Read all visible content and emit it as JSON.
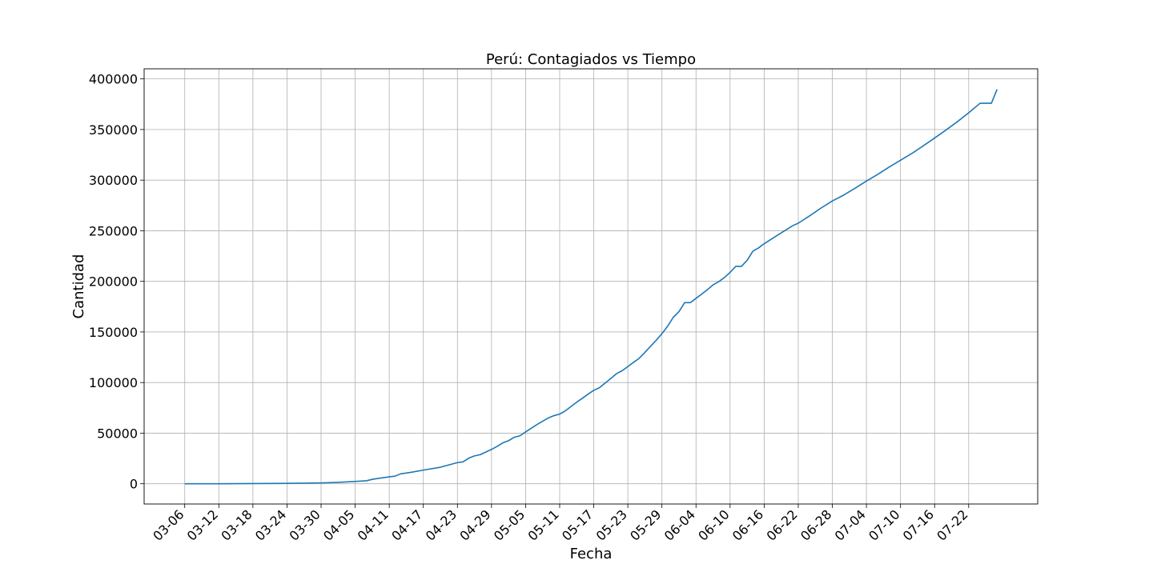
{
  "chart_data": {
    "type": "line",
    "title": "Perú: Contagiados vs Tiempo",
    "xlabel": "Fecha",
    "ylabel": "Cantidad",
    "grid": true,
    "ylim": [
      -20000,
      410000
    ],
    "x_tick_labels": [
      "03-06",
      "03-12",
      "03-18",
      "03-24",
      "03-30",
      "04-05",
      "04-11",
      "04-17",
      "04-23",
      "04-29",
      "05-05",
      "05-11",
      "05-17",
      "05-23",
      "05-29",
      "06-04",
      "06-10",
      "06-16",
      "06-22",
      "06-28",
      "07-04",
      "07-10",
      "07-16",
      "07-22"
    ],
    "y_ticks": [
      0,
      50000,
      100000,
      150000,
      200000,
      250000,
      300000,
      350000,
      400000
    ],
    "series": [
      {
        "color": "#1f77b4",
        "points": [
          [
            "03-06",
            1
          ],
          [
            "03-12",
            22
          ],
          [
            "03-18",
            234
          ],
          [
            "03-24",
            416
          ],
          [
            "03-30",
            852
          ],
          [
            "04-02",
            1414
          ],
          [
            "04-05",
            2281
          ],
          [
            "04-07",
            2954
          ],
          [
            "04-08",
            4342
          ],
          [
            "04-09",
            5256
          ],
          [
            "04-11",
            6848
          ],
          [
            "04-12",
            7519
          ],
          [
            "04-13",
            9784
          ],
          [
            "04-15",
            11475
          ],
          [
            "04-17",
            13489
          ],
          [
            "04-20",
            16325
          ],
          [
            "04-23",
            20914
          ],
          [
            "04-24",
            21648
          ],
          [
            "04-25",
            25331
          ],
          [
            "04-26",
            27517
          ],
          [
            "04-27",
            28699
          ],
          [
            "04-29",
            33931
          ],
          [
            "04-30",
            36976
          ],
          [
            "05-01",
            40459
          ],
          [
            "05-02",
            42534
          ],
          [
            "05-03",
            45928
          ],
          [
            "05-04",
            47372
          ],
          [
            "05-05",
            51189
          ],
          [
            "05-07",
            58526
          ],
          [
            "05-09",
            65015
          ],
          [
            "05-10",
            67307
          ],
          [
            "05-11",
            68822
          ],
          [
            "05-12",
            72059
          ],
          [
            "05-13",
            76306
          ],
          [
            "05-14",
            80604
          ],
          [
            "05-15",
            84495
          ],
          [
            "05-16",
            88541
          ],
          [
            "05-17",
            92273
          ],
          [
            "05-18",
            94933
          ],
          [
            "05-19",
            99483
          ],
          [
            "05-20",
            104020
          ],
          [
            "05-21",
            108769
          ],
          [
            "05-22",
            111698
          ],
          [
            "05-23",
            115754
          ],
          [
            "05-24",
            119959
          ],
          [
            "05-25",
            123979
          ],
          [
            "05-26",
            129751
          ],
          [
            "05-27",
            135905
          ],
          [
            "05-28",
            141779
          ],
          [
            "05-29",
            148285
          ],
          [
            "05-30",
            155671
          ],
          [
            "05-31",
            164476
          ],
          [
            "06-01",
            170039
          ],
          [
            "06-02",
            178914
          ],
          [
            "06-03",
            178914
          ],
          [
            "06-04",
            183198
          ],
          [
            "06-05",
            187400
          ],
          [
            "06-06",
            191758
          ],
          [
            "06-07",
            196515
          ],
          [
            "06-08",
            199696
          ],
          [
            "06-09",
            203736
          ],
          [
            "06-10",
            208823
          ],
          [
            "06-11",
            214788
          ],
          [
            "06-12",
            214788
          ],
          [
            "06-13",
            220749
          ],
          [
            "06-14",
            229736
          ],
          [
            "06-15",
            232992
          ],
          [
            "06-16",
            237156
          ],
          [
            "06-18",
            244388
          ],
          [
            "06-20",
            251338
          ],
          [
            "06-21",
            254936
          ],
          [
            "06-22",
            257447
          ],
          [
            "06-24",
            264689
          ],
          [
            "06-26",
            272364
          ],
          [
            "06-28",
            279419
          ],
          [
            "06-30",
            285213
          ],
          [
            "07-02",
            292004
          ],
          [
            "07-04",
            299080
          ],
          [
            "07-06",
            305703
          ],
          [
            "07-08",
            312911
          ],
          [
            "07-10",
            319646
          ],
          [
            "07-12",
            326326
          ],
          [
            "07-14",
            333867
          ],
          [
            "07-16",
            341586
          ],
          [
            "07-18",
            349500
          ],
          [
            "07-20",
            357681
          ],
          [
            "07-22",
            366550
          ],
          [
            "07-24",
            375961
          ],
          [
            "07-25",
            375961
          ],
          [
            "07-26",
            375961
          ],
          [
            "07-27",
            389717
          ]
        ]
      }
    ]
  }
}
